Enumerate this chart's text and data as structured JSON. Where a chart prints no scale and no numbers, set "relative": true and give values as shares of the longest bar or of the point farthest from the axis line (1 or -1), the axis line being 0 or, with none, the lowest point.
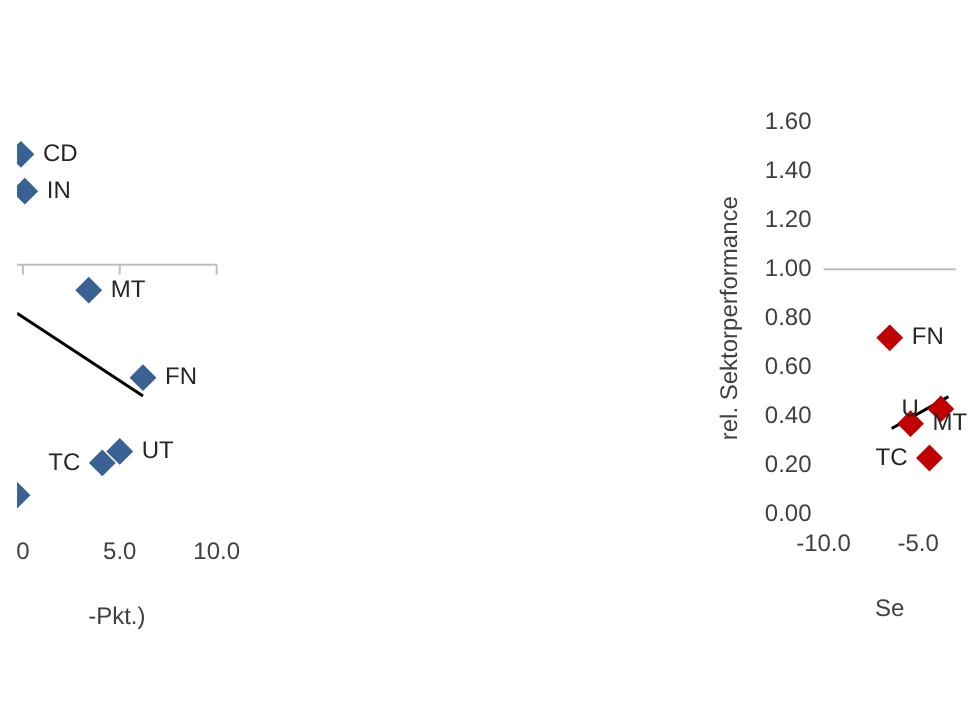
{
  "chart_data": [
    {
      "type": "scatter",
      "xlabel": "-Pkt.)",
      "relative": true,
      "grid": false,
      "legend": false,
      "tick_labels": "x",
      "xlim": [
        -0.3,
        10
      ],
      "xticks": [
        {
          "value": 0,
          "label": "0"
        },
        {
          "value": 5,
          "label": "5.0"
        },
        {
          "value": 10,
          "label": "10.0"
        }
      ],
      "series": [
        {
          "color": "#3a6193",
          "marker": "diamond",
          "x": [
            -0.1,
            0.1,
            3.4,
            6.2,
            4.1,
            5.0,
            -0.3
          ],
          "values": [
            0.48,
            0.32,
            -0.11,
            -0.49,
            -0.86,
            -0.81,
            -1
          ]
        },
        {
          "type": "line",
          "color": "#000000",
          "x": [
            -0.3,
            6.2
          ],
          "values": [
            -0.21,
            -0.57
          ]
        }
      ],
      "annotations": [
        {
          "text": "CD",
          "x": -0.1,
          "y": 0.48
        },
        {
          "text": "IN",
          "x": 0.1,
          "y": 0.32
        },
        {
          "text": "MT",
          "x": 3.4,
          "y": -0.11
        },
        {
          "text": "FN",
          "x": 6.2,
          "y": -0.49
        },
        {
          "text": "UT",
          "x": 5.0,
          "y": -0.81
        },
        {
          "text": "TC",
          "x": 4.1,
          "y": -0.86
        }
      ]
    },
    {
      "type": "scatter",
      "xlabel": "Se",
      "ylabel": "rel. Sektorperformance",
      "grid": false,
      "legend": false,
      "xlim": [
        -10,
        -3.0
      ],
      "xticks": [
        {
          "value": -10,
          "label": "-10.0"
        },
        {
          "value": -5,
          "label": "-5.0"
        }
      ],
      "ylim": [
        0,
        1.6
      ],
      "yticks": [
        {
          "value": 0,
          "label": "0.00"
        },
        {
          "value": 0.2,
          "label": "0.20"
        },
        {
          "value": 0.4,
          "label": "0.40"
        },
        {
          "value": 0.6,
          "label": "0.60"
        },
        {
          "value": 0.8,
          "label": "0.80"
        },
        {
          "value": 1.0,
          "label": "1.00"
        },
        {
          "value": 1.2,
          "label": "1.20"
        },
        {
          "value": 1.4,
          "label": "1.40"
        },
        {
          "value": 1.6,
          "label": "1.60"
        }
      ],
      "ref_lines": [
        {
          "axis": "y",
          "value": 1.0,
          "color": "#bfbfbf"
        }
      ],
      "series": [
        {
          "color": "#c00000",
          "marker": "diamond",
          "x": [
            -6.5,
            -5.4,
            -4.4,
            -3.8
          ],
          "values": [
            0.72,
            0.37,
            0.23,
            0.43
          ]
        },
        {
          "type": "line",
          "color": "#000000",
          "x": [
            -6.4,
            -3.4
          ],
          "values": [
            0.35,
            0.48
          ]
        }
      ],
      "annotations": [
        {
          "text": "FN",
          "x": -6.5,
          "y": 0.72
        },
        {
          "text": "MT",
          "x": -5.4,
          "y": 0.37
        },
        {
          "text": "TC",
          "x": -4.4,
          "y": 0.23
        },
        {
          "text": "U",
          "x": -3.8,
          "y": 0.43
        }
      ]
    }
  ]
}
